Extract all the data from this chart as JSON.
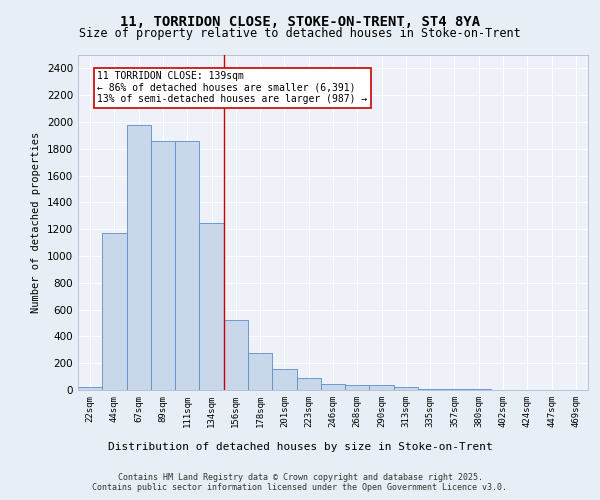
{
  "title_line1": "11, TORRIDON CLOSE, STOKE-ON-TRENT, ST4 8YA",
  "title_line2": "Size of property relative to detached houses in Stoke-on-Trent",
  "xlabel": "Distribution of detached houses by size in Stoke-on-Trent",
  "ylabel": "Number of detached properties",
  "bin_labels": [
    "22sqm",
    "44sqm",
    "67sqm",
    "89sqm",
    "111sqm",
    "134sqm",
    "156sqm",
    "178sqm",
    "201sqm",
    "223sqm",
    "246sqm",
    "268sqm",
    "290sqm",
    "313sqm",
    "335sqm",
    "357sqm",
    "380sqm",
    "402sqm",
    "424sqm",
    "447sqm",
    "469sqm"
  ],
  "bar_values": [
    25,
    1175,
    1975,
    1860,
    1860,
    1245,
    520,
    275,
    155,
    90,
    45,
    40,
    40,
    20,
    10,
    5,
    5,
    3,
    2,
    2,
    2
  ],
  "bar_color": "#c8d8ea",
  "bar_edge_color": "#5b8fc9",
  "vline_x": 5.5,
  "vline_color": "#cc0000",
  "annotation_text": "11 TORRIDON CLOSE: 139sqm\n← 86% of detached houses are smaller (6,391)\n13% of semi-detached houses are larger (987) →",
  "annotation_box_color": "#ffffff",
  "annotation_box_edge": "#cc0000",
  "ylim": [
    0,
    2500
  ],
  "yticks": [
    0,
    200,
    400,
    600,
    800,
    1000,
    1200,
    1400,
    1600,
    1800,
    2000,
    2200,
    2400
  ],
  "footer_line1": "Contains HM Land Registry data © Crown copyright and database right 2025.",
  "footer_line2": "Contains public sector information licensed under the Open Government Licence v3.0.",
  "bg_color": "#e8eef5",
  "plot_bg_color": "#eef2f8"
}
